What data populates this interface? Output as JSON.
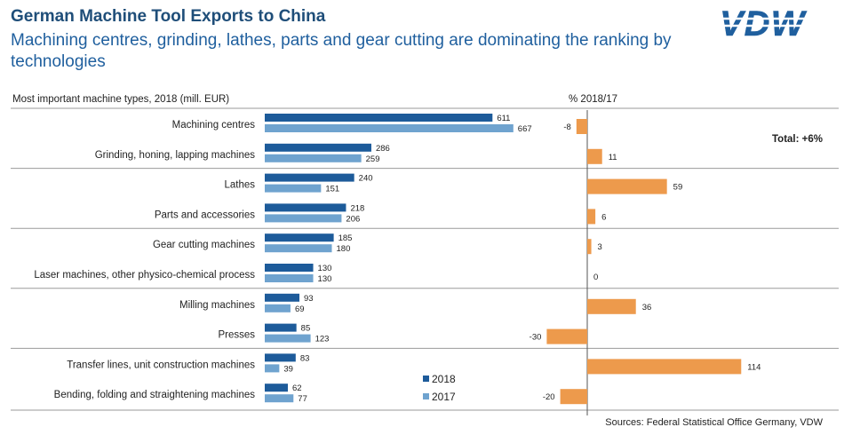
{
  "title": "German Machine Tool Exports to China",
  "subtitle": "Machining centres, grinding, lathes, parts and gear cutting are dominating the ranking by technologies",
  "logo_text": "VDW",
  "source": "Sources: Federal Statistical Office Germany, VDW",
  "colors": {
    "y2018": "#1d5b9a",
    "y2017": "#6fa3cf",
    "change": "#ed9a4c",
    "title": "#1f4e79"
  },
  "chart_data": {
    "type": "bar",
    "left_header": "Most important machine types, 2018 (mill. EUR)",
    "right_header": "% 2018/17",
    "total_label": "Total: +6%",
    "categories": [
      "Machining centres",
      "Grinding, honing, lapping machines",
      "Lathes",
      "Parts and accessories",
      "Gear cutting machines",
      "Laser machines, other physico-chemical process",
      "Milling machines",
      "Presses",
      "Transfer lines, unit construction machines",
      "Bending, folding and straightening machines"
    ],
    "series": [
      {
        "name": "2018",
        "values": [
          611,
          286,
          240,
          218,
          185,
          130,
          93,
          85,
          83,
          62
        ]
      },
      {
        "name": "2017",
        "values": [
          667,
          259,
          151,
          206,
          180,
          130,
          69,
          123,
          39,
          77
        ]
      }
    ],
    "change_pct": [
      -8,
      11,
      59,
      6,
      3,
      0,
      36,
      -30,
      114,
      -20
    ],
    "separators_after": [
      1,
      3,
      5,
      7
    ]
  }
}
